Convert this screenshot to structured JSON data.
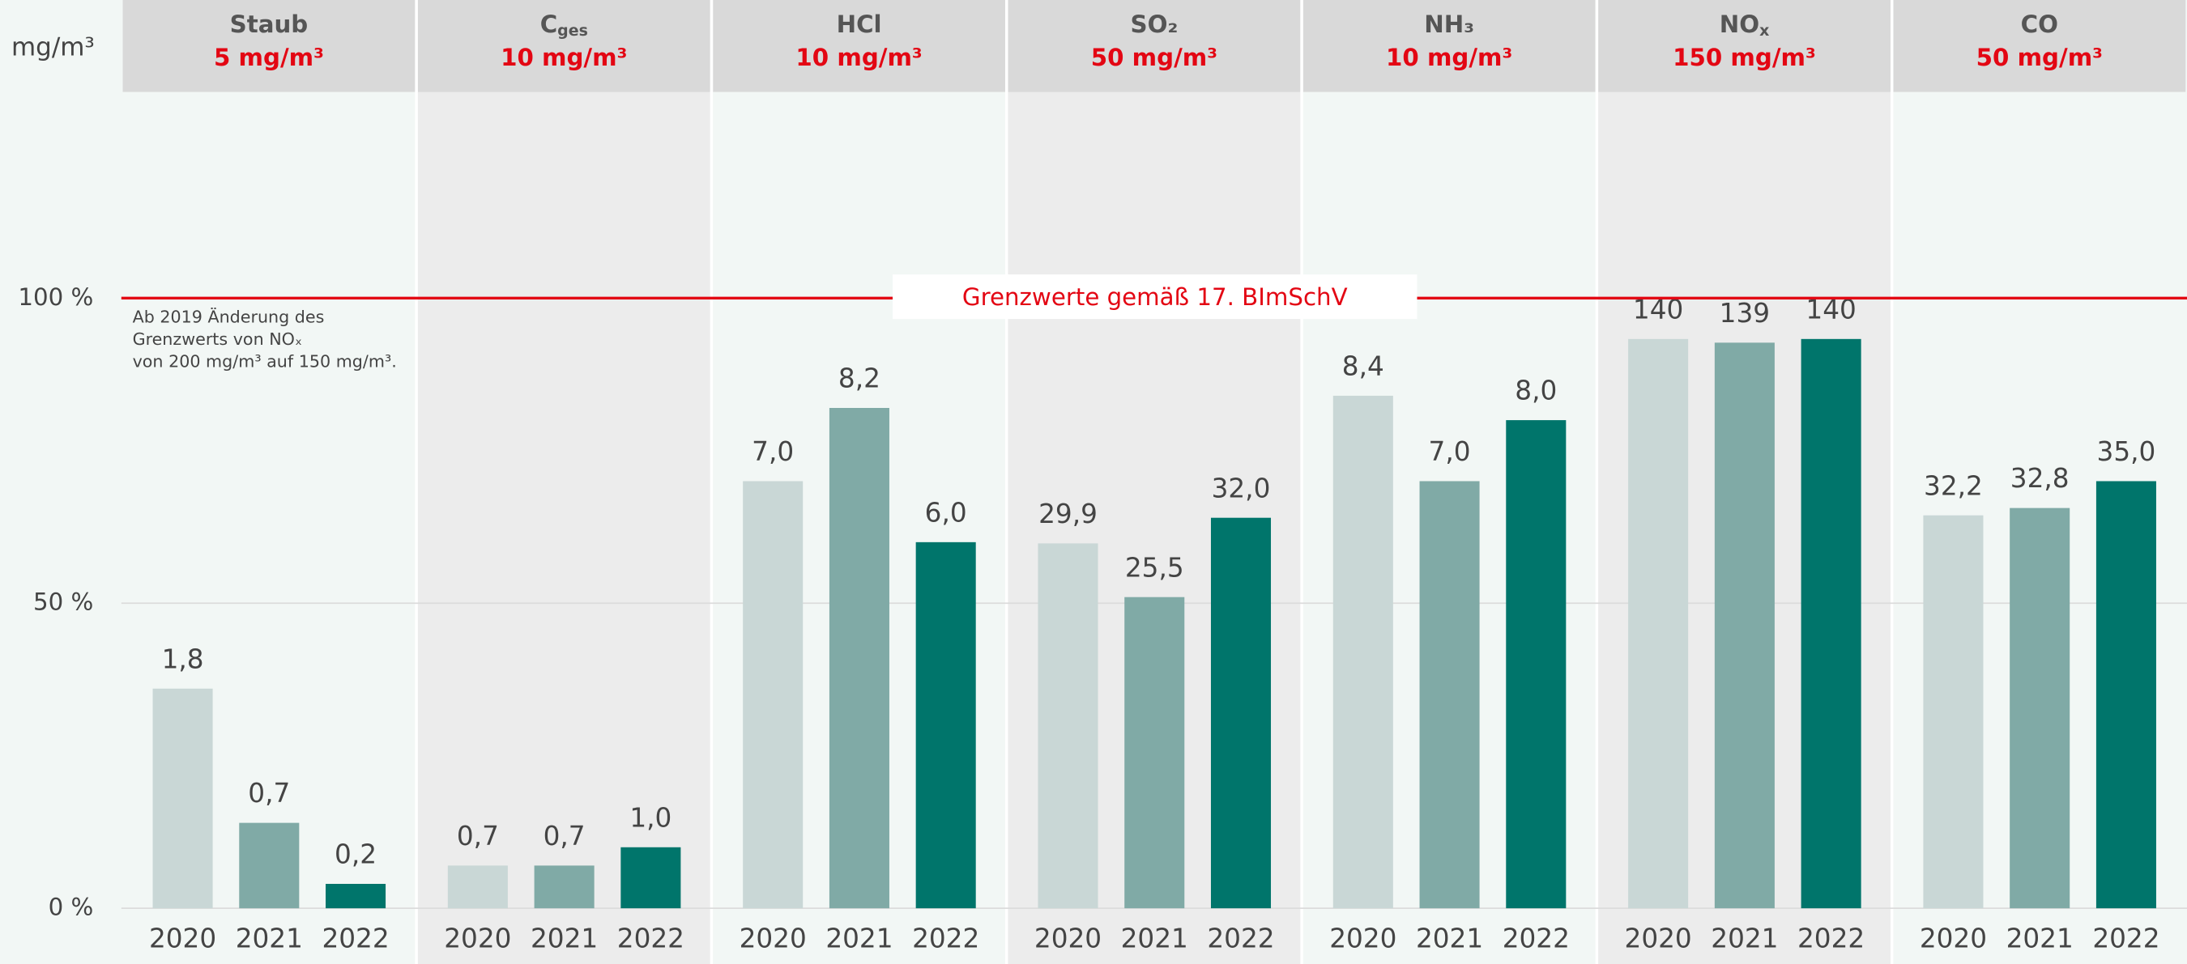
{
  "chart_data": {
    "type": "bar",
    "unit_label": "mg/m³",
    "categories": [
      {
        "name": "Staub",
        "limit": "5 mg/m³"
      },
      {
        "name": "C",
        "sub": "ges",
        "limit": "10 mg/m³"
      },
      {
        "name": "HCl",
        "limit": "10 mg/m³"
      },
      {
        "name": "SO₂",
        "limit": "50 mg/m³"
      },
      {
        "name": "NH₃",
        "limit": "10 mg/m³"
      },
      {
        "name": "NO",
        "sub": "x",
        "limit": "150 mg/m³"
      },
      {
        "name": "CO",
        "limit": "50 mg/m³"
      }
    ],
    "series": [
      {
        "name": "2020",
        "color": "#c9d7d6",
        "values": [
          36,
          7,
          70,
          59.8,
          84,
          93.3,
          64.4
        ],
        "value_labels": [
          "1,8",
          "0,7",
          "7,0",
          "29,9",
          "8,4",
          "140",
          "32,2"
        ]
      },
      {
        "name": "2021",
        "color": "#80aaa6",
        "values": [
          14,
          7,
          82,
          51,
          70,
          92.7,
          65.6
        ],
        "value_labels": [
          "0,7",
          "0,7",
          "8,2",
          "25,5",
          "7,0",
          "139",
          "32,8"
        ]
      },
      {
        "name": "2022",
        "color": "#00756b",
        "values": [
          4,
          10,
          60,
          64,
          80,
          93.3,
          70
        ],
        "value_labels": [
          "0,2",
          "1,0",
          "6,0",
          "32,0",
          "8,0",
          "140",
          "35,0"
        ]
      }
    ],
    "ylim": [
      0,
      134
    ],
    "yticks": [
      {
        "value": 0,
        "label": "0 %"
      },
      {
        "value": 50,
        "label": "50 %"
      },
      {
        "value": 100,
        "label": "100 %"
      }
    ],
    "grid": true,
    "reference_line": {
      "value": 100,
      "label": "Grenzwerte gemäß 17. BImSchV",
      "color": "#e30613"
    },
    "annotation": [
      "Ab 2019 Änderung des",
      "Grenzwerts von NOₓ",
      "von 200 mg/m³ auf 150 mg/m³."
    ]
  }
}
